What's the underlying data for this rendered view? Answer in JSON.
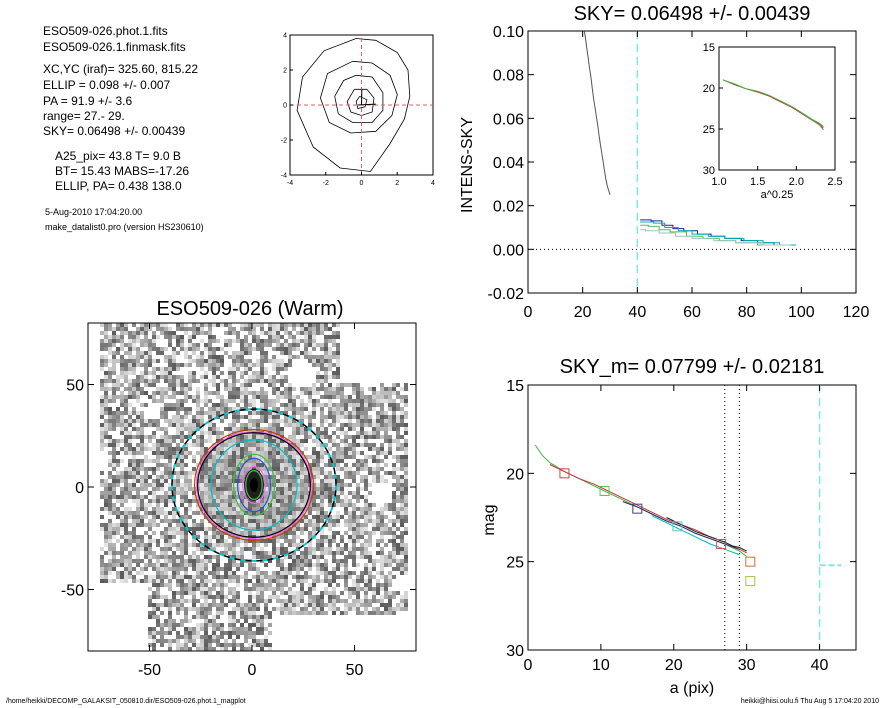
{
  "info": {
    "lines_a": [
      "ESO509-026.phot.1.fits",
      "ESO509-026.1.finmask.fits"
    ],
    "lines_b": [
      "XC,YC (iraf)=   325.60, 815.22",
      "ELLIP = 0.098 +/- 0.007",
      "PA    =  91.9 +/-   3.6",
      "range=   27.-   29.",
      "SKY= 0.06498 +/- 0.00439"
    ],
    "lines_c": [
      "A25_pix= 43.8   T= 9.0  B",
      "BT=  15.43   MABS=-17.26",
      "ELLIP, PA= 0.438   138.0"
    ],
    "date": "5-Aug-2010 17:04:20.00",
    "program": "make_datalist0.pro (version HS230610)"
  },
  "footer": {
    "left": "/home/heikki/DECOMP_GALAKSIT_050810.dir/ESO509-026.phot.1_magplot",
    "right": "heikki@hiisi.oulu.fi  Thu Aug  5 17:04:20 2010"
  },
  "chart_data": [
    {
      "id": "contour",
      "type": "line",
      "title": "",
      "xlim": [
        -4,
        4
      ],
      "ylim": [
        -4,
        4
      ],
      "xticks": [
        "-4",
        "-2",
        "0",
        "2",
        "4"
      ],
      "yticks": [
        "-4",
        "-2",
        "0",
        "2",
        "4"
      ],
      "contours": [
        [
          [
            -0.3,
            3.8
          ],
          [
            0.8,
            3.7
          ],
          [
            2.0,
            3.0
          ],
          [
            2.6,
            2.0
          ],
          [
            2.7,
            0.5
          ],
          [
            2.4,
            -0.8
          ],
          [
            1.6,
            -2.2
          ],
          [
            0.5,
            -3.8
          ],
          [
            -1.2,
            -3.6
          ],
          [
            -2.7,
            -2.4
          ],
          [
            -3.6,
            -0.3
          ],
          [
            -3.3,
            1.6
          ],
          [
            -2.1,
            3.1
          ],
          [
            -0.3,
            3.8
          ]
        ],
        [
          [
            -0.5,
            2.5
          ],
          [
            0.6,
            2.4
          ],
          [
            1.6,
            1.7
          ],
          [
            2.0,
            0.6
          ],
          [
            1.7,
            -0.6
          ],
          [
            0.8,
            -1.5
          ],
          [
            -0.6,
            -1.6
          ],
          [
            -1.8,
            -1.0
          ],
          [
            -2.3,
            0.4
          ],
          [
            -1.9,
            1.8
          ],
          [
            -0.5,
            2.5
          ]
        ],
        [
          [
            -0.3,
            1.7
          ],
          [
            0.6,
            1.6
          ],
          [
            1.2,
            0.7
          ],
          [
            1.2,
            -0.3
          ],
          [
            0.6,
            -1.0
          ],
          [
            -0.5,
            -1.0
          ],
          [
            -1.3,
            -0.5
          ],
          [
            -1.5,
            0.5
          ],
          [
            -1.0,
            1.4
          ],
          [
            -0.3,
            1.7
          ]
        ],
        [
          [
            -0.4,
            0.9
          ],
          [
            0.3,
            0.9
          ],
          [
            0.7,
            0.4
          ],
          [
            0.6,
            -0.4
          ],
          [
            0.0,
            -0.6
          ],
          [
            -0.6,
            -0.4
          ],
          [
            -0.8,
            0.2
          ],
          [
            -0.4,
            0.9
          ]
        ],
        [
          [
            -0.1,
            0.5
          ],
          [
            0.3,
            0.3
          ],
          [
            0.2,
            -0.1
          ],
          [
            -0.2,
            -0.2
          ],
          [
            -0.3,
            0.2
          ],
          [
            -0.1,
            0.5
          ]
        ]
      ],
      "major_axis": [
        [
          -0.2,
          0.0
        ],
        [
          0.8,
          0.05
        ]
      ],
      "minor_axis": [
        [
          0.0,
          0.0
        ],
        [
          0.02,
          0.9
        ]
      ],
      "center": [
        0,
        0
      ]
    },
    {
      "id": "intens",
      "type": "line",
      "title": "SKY= 0.06498 +/- 0.00439",
      "ylabel": "INTENS-SKY",
      "xlim": [
        0,
        120
      ],
      "ylim": [
        -0.02,
        0.1
      ],
      "xticks": [
        "0",
        "20",
        "40",
        "60",
        "80",
        "100",
        "120"
      ],
      "yticks": [
        "-0.02",
        "0.00",
        "0.02",
        "0.04",
        "0.06",
        "0.08",
        "0.10"
      ],
      "sky_radius": 40,
      "zero_line": 0,
      "series": [
        {
          "color": "#555555",
          "x": [
            20.5,
            21,
            21.5,
            22,
            22.5,
            23,
            23.5,
            24,
            24.5,
            25,
            25.5,
            26,
            26.5,
            27,
            27.5,
            28,
            28.5,
            29,
            29.5,
            30
          ],
          "y": [
            0.101,
            0.097,
            0.092,
            0.088,
            0.083,
            0.079,
            0.074,
            0.069,
            0.065,
            0.061,
            0.057,
            0.052,
            0.048,
            0.044,
            0.04,
            0.036,
            0.032,
            0.029,
            0.027,
            0.025
          ]
        },
        {
          "color": "#2020a0",
          "x": [
            41,
            45,
            45,
            49,
            49,
            53,
            53,
            57,
            57,
            62,
            62,
            67,
            67,
            72,
            72,
            78,
            78,
            84,
            84,
            90,
            90,
            98
          ],
          "y": [
            0.0135,
            0.0135,
            0.013,
            0.013,
            0.011,
            0.011,
            0.0095,
            0.0095,
            0.0085,
            0.0085,
            0.007,
            0.007,
            0.006,
            0.006,
            0.005,
            0.005,
            0.004,
            0.004,
            0.003,
            0.003,
            0.002,
            0.002
          ]
        },
        {
          "color": "#00b0b0",
          "x": [
            41,
            46,
            46,
            50,
            50,
            55,
            55,
            60,
            60,
            66,
            66,
            72,
            72,
            79,
            79,
            86,
            86,
            92,
            92,
            98
          ],
          "y": [
            0.0125,
            0.0125,
            0.012,
            0.012,
            0.01,
            0.01,
            0.0085,
            0.0085,
            0.007,
            0.007,
            0.006,
            0.006,
            0.005,
            0.005,
            0.004,
            0.004,
            0.003,
            0.003,
            0.002,
            0.002
          ]
        },
        {
          "color": "#50c050",
          "x": [
            41,
            44,
            44,
            48,
            48,
            52,
            52,
            58,
            58,
            64,
            64,
            70,
            70,
            76,
            76,
            84,
            84,
            92
          ],
          "y": [
            0.011,
            0.011,
            0.0105,
            0.0105,
            0.009,
            0.009,
            0.008,
            0.008,
            0.006,
            0.006,
            0.005,
            0.005,
            0.004,
            0.004,
            0.003,
            0.003,
            0.002,
            0.002
          ]
        },
        {
          "color": "#a0c0c0",
          "x": [
            41,
            43,
            43,
            48,
            48,
            54,
            54,
            60,
            60,
            68,
            68,
            76,
            76,
            86,
            86,
            96
          ],
          "y": [
            0.009,
            0.009,
            0.0085,
            0.0085,
            0.0075,
            0.0075,
            0.006,
            0.006,
            0.005,
            0.005,
            0.004,
            0.004,
            0.003,
            0.003,
            0.002,
            0.002
          ]
        }
      ],
      "inset": {
        "xlabel": "a^0.25",
        "xlim": [
          1.0,
          2.5
        ],
        "ylim": [
          15,
          30
        ],
        "y_reversed": true,
        "xticks": [
          "1.0",
          "1.5",
          "2.0",
          "2.5"
        ],
        "yticks": [
          "15",
          "20",
          "25",
          "30"
        ],
        "series": [
          {
            "color": "#cc3333",
            "x": [
              1.05,
              1.2,
              1.35,
              1.5,
              1.65,
              1.8,
              1.95,
              2.1,
              2.2,
              2.3,
              2.35
            ],
            "y": [
              19.0,
              19.6,
              20.1,
              20.5,
              21.0,
              21.7,
              22.4,
              23.3,
              23.9,
              24.4,
              24.9
            ]
          },
          {
            "color": "#40b040",
            "x": [
              1.05,
              1.2,
              1.35,
              1.5,
              1.65,
              1.8,
              1.95,
              2.1,
              2.2,
              2.3,
              2.35
            ],
            "y": [
              19.0,
              19.5,
              20.1,
              20.4,
              20.9,
              21.6,
              22.3,
              23.2,
              23.8,
              24.3,
              24.7
            ]
          },
          {
            "color": "#8a7a50",
            "x": [
              2.1,
              2.2,
              2.3,
              2.35
            ],
            "y": [
              23.3,
              23.9,
              24.5,
              25.1
            ]
          }
        ]
      }
    },
    {
      "id": "image",
      "type": "heatmap",
      "title": "ESO509-026 (Warm)",
      "xlim": [
        -80,
        80
      ],
      "ylim": [
        -80,
        80
      ],
      "xticks": [
        "-50",
        "0",
        "50"
      ],
      "yticks": [
        "-50",
        "0",
        "50"
      ],
      "ellipses": [
        {
          "color": "#00c8d0",
          "a": 40,
          "b": 37,
          "dash": true
        },
        {
          "color": "#000000",
          "a": 40,
          "b": 37,
          "dash": "dashed-black"
        },
        {
          "color": "#ff66ff",
          "a": 28,
          "b": 26
        },
        {
          "color": "#c04000",
          "a": 29,
          "b": 27
        },
        {
          "color": "#000000",
          "a": 27.5,
          "b": 25.5
        },
        {
          "color": "#00c0c0",
          "a": 21,
          "b": 22
        },
        {
          "color": "#40c040",
          "a": 10,
          "b": 15
        },
        {
          "color": "#3050d0",
          "a": 8,
          "b": 13
        },
        {
          "color": "#ff66ff",
          "a": 5.5,
          "b": 9
        },
        {
          "color": "#40c040",
          "a": 4,
          "b": 7
        }
      ]
    },
    {
      "id": "mag",
      "type": "line",
      "title": "SKY_m=  0.07799 +/- 0.02181",
      "xlabel": "a (pix)",
      "ylabel": "mag",
      "xlim": [
        0,
        45
      ],
      "ylim": [
        15,
        30
      ],
      "y_reversed": true,
      "xticks": [
        "0",
        "10",
        "20",
        "30",
        "40"
      ],
      "yticks": [
        "15",
        "20",
        "25",
        "30"
      ],
      "vlines_dotted": [
        27,
        29
      ],
      "vline_sky": 40,
      "sky_segment": {
        "x": [
          40,
          43
        ],
        "y": 25.2
      },
      "series": [
        {
          "color": "#40b040",
          "x": [
            1,
            2,
            3,
            5,
            7,
            9,
            11,
            13,
            15,
            17,
            19,
            21,
            23,
            25,
            27,
            28,
            29,
            30
          ],
          "y": [
            18.4,
            19.0,
            19.4,
            19.9,
            20.3,
            20.7,
            21.1,
            21.5,
            21.9,
            22.3,
            22.7,
            23.0,
            23.4,
            23.7,
            24.0,
            24.2,
            24.4,
            24.7
          ]
        },
        {
          "color": "#cc3333",
          "x": [
            3,
            5,
            7,
            9,
            11,
            13,
            15,
            17,
            19,
            21,
            23,
            25,
            27,
            28,
            29,
            30
          ],
          "y": [
            19.5,
            19.9,
            20.3,
            20.6,
            21.0,
            21.4,
            21.8,
            22.2,
            22.6,
            22.9,
            23.2,
            23.6,
            23.9,
            24.1,
            24.3,
            24.5
          ]
        },
        {
          "color": "#2a2a80",
          "x": [
            13,
            15,
            17,
            19,
            21,
            23,
            25,
            27,
            29
          ],
          "y": [
            21.6,
            21.9,
            22.3,
            22.7,
            23.0,
            23.4,
            23.7,
            24.0,
            24.3
          ]
        },
        {
          "color": "#00b8b8",
          "x": [
            17,
            19,
            21,
            23,
            25,
            27,
            29
          ],
          "y": [
            22.4,
            22.8,
            23.2,
            23.6,
            24.0,
            24.3,
            24.6
          ]
        },
        {
          "color": "#202020",
          "x": [
            19,
            21,
            23,
            25,
            27,
            28,
            29,
            30
          ],
          "y": [
            22.5,
            22.9,
            23.3,
            23.6,
            23.9,
            24.1,
            24.2,
            24.4
          ]
        }
      ],
      "markers": [
        {
          "x": 5,
          "y": 20.0,
          "color": "#cc4444"
        },
        {
          "x": 10.5,
          "y": 21.0,
          "color": "#60c060"
        },
        {
          "x": 15,
          "y": 22.0,
          "color": "#404070"
        },
        {
          "x": 20.5,
          "y": 23.0,
          "color": "#50c8c8"
        },
        {
          "x": 26.5,
          "y": 24.0,
          "color": "#cc5555"
        },
        {
          "x": 30.5,
          "y": 25.0,
          "color": "#d07030"
        },
        {
          "x": 30.5,
          "y": 26.1,
          "color": "#b0c040"
        }
      ]
    }
  ]
}
